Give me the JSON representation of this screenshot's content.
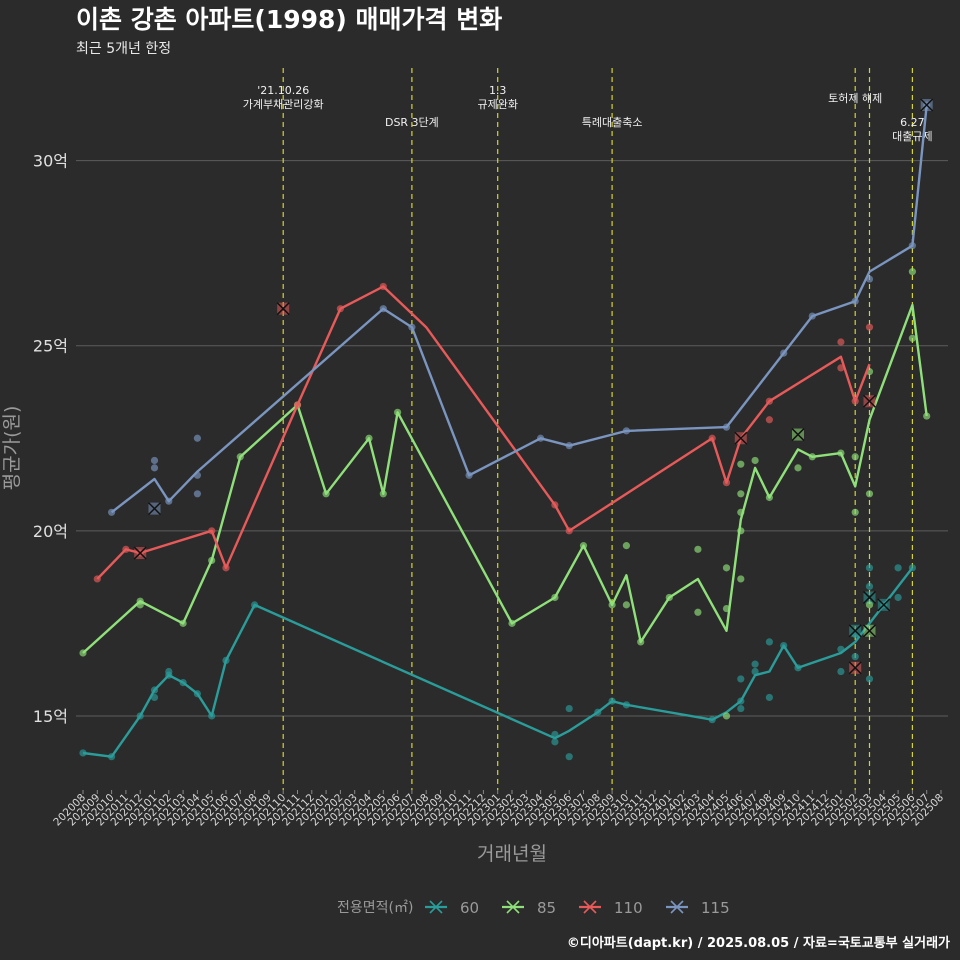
{
  "chart_data": {
    "type": "line",
    "title": "이촌 강촌 아파트(1998) 매매가격 변화",
    "subtitle": "최근 5개년 한정",
    "xlabel": "거래년월",
    "ylabel": "평균가(원)",
    "ylim": [
      13.0,
      32.5
    ],
    "yticks": [
      {
        "value": 15,
        "label": "15억"
      },
      {
        "value": 20,
        "label": "20억"
      },
      {
        "value": 25,
        "label": "25억"
      },
      {
        "value": 30,
        "label": "30억"
      }
    ],
    "x_categories": [
      "202008",
      "202009",
      "202010",
      "202011",
      "202012",
      "202101",
      "202102",
      "202103",
      "202104",
      "202105",
      "202106",
      "202107",
      "202108",
      "202109",
      "202110",
      "202111",
      "202112",
      "202201",
      "202202",
      "202203",
      "202204",
      "202205",
      "202206",
      "202207",
      "202208",
      "202209",
      "202210",
      "202211",
      "202212",
      "202301",
      "202302",
      "202303",
      "202304",
      "202305",
      "202306",
      "202307",
      "202308",
      "202309",
      "202310",
      "202311",
      "202312",
      "202401",
      "202402",
      "202403",
      "202404",
      "202405",
      "202406",
      "202407",
      "202408",
      "202409",
      "202410",
      "202411",
      "202412",
      "202501",
      "202502",
      "202503",
      "202504",
      "202505",
      "202506",
      "202507",
      "202508"
    ],
    "grid": "horizontal",
    "legend": {
      "title": "전용면적(㎡)",
      "position": "bottom",
      "entries": [
        {
          "label": "60",
          "color": "#2a9d9b"
        },
        {
          "label": "85",
          "color": "#8fe07a"
        },
        {
          "label": "110",
          "color": "#e85a5a"
        },
        {
          "label": "115",
          "color": "#7a95c0"
        }
      ]
    },
    "series": [
      {
        "name": "60",
        "color": "#2a9d9b",
        "line": [
          [
            "202008",
            14.0
          ],
          [
            "202010",
            13.9
          ],
          [
            "202012",
            15.0
          ],
          [
            "202101",
            15.7
          ],
          [
            "202102",
            16.1
          ],
          [
            "202103",
            15.9
          ],
          [
            "202104",
            15.6
          ],
          [
            "202105",
            15.0
          ],
          [
            "202106",
            16.5
          ],
          [
            "202108",
            18.0
          ],
          [
            "202305",
            14.4
          ],
          [
            "202306",
            14.6
          ],
          [
            "202308",
            15.1
          ],
          [
            "202309",
            15.4
          ],
          [
            "202310",
            15.3
          ],
          [
            "202404",
            14.9
          ],
          [
            "202405",
            15.1
          ],
          [
            "202406",
            15.4
          ],
          [
            "202407",
            16.1
          ],
          [
            "202408",
            16.2
          ],
          [
            "202409",
            16.9
          ],
          [
            "202410",
            16.3
          ],
          [
            "202501",
            16.7
          ],
          [
            "202502",
            17.0
          ],
          [
            "202503",
            17.5
          ],
          [
            "202504",
            18.0
          ],
          [
            "202505",
            18.5
          ],
          [
            "202506",
            19.0
          ]
        ],
        "points": [
          [
            "202008",
            14.0
          ],
          [
            "202010",
            13.9
          ],
          [
            "202012",
            15.0
          ],
          [
            "202101",
            15.5
          ],
          [
            "202101",
            15.7
          ],
          [
            "202102",
            16.2
          ],
          [
            "202102",
            16.1
          ],
          [
            "202103",
            15.9
          ],
          [
            "202104",
            15.6
          ],
          [
            "202105",
            15.0
          ],
          [
            "202106",
            16.5
          ],
          [
            "202108",
            18.0
          ],
          [
            "202305",
            14.5
          ],
          [
            "202305",
            14.3
          ],
          [
            "202306",
            15.2
          ],
          [
            "202306",
            13.9
          ],
          [
            "202308",
            15.1
          ],
          [
            "202309",
            15.4
          ],
          [
            "202310",
            15.3
          ],
          [
            "202404",
            14.9
          ],
          [
            "202406",
            15.2
          ],
          [
            "202406",
            15.4
          ],
          [
            "202406",
            16.0
          ],
          [
            "202407",
            16.2
          ],
          [
            "202407",
            16.4
          ],
          [
            "202408",
            17.0
          ],
          [
            "202408",
            15.5
          ],
          [
            "202409",
            16.9
          ],
          [
            "202410",
            16.3
          ],
          [
            "202501",
            16.2
          ],
          [
            "202501",
            16.8
          ],
          [
            "202502",
            16.6
          ],
          [
            "202502",
            17.2
          ],
          [
            "202503",
            16.0
          ],
          [
            "202503",
            18.5
          ],
          [
            "202503",
            19.0
          ],
          [
            "202504",
            18.0
          ],
          [
            "202505",
            18.2
          ],
          [
            "202505",
            19.0
          ],
          [
            "202506",
            19.0
          ]
        ],
        "crosses": [
          [
            "202502",
            17.3
          ],
          [
            "202503",
            18.2
          ],
          [
            "202504",
            18.0
          ]
        ]
      },
      {
        "name": "85",
        "color": "#8fe07a",
        "line": [
          [
            "202008",
            16.7
          ],
          [
            "202012",
            18.1
          ],
          [
            "202103",
            17.5
          ],
          [
            "202105",
            19.2
          ],
          [
            "202107",
            22.0
          ],
          [
            "202111",
            23.4
          ],
          [
            "202201",
            21.0
          ],
          [
            "202204",
            22.5
          ],
          [
            "202205",
            21.0
          ],
          [
            "202206",
            23.2
          ],
          [
            "202302",
            17.5
          ],
          [
            "202305",
            18.2
          ],
          [
            "202307",
            19.6
          ],
          [
            "202309",
            18.0
          ],
          [
            "202310",
            18.8
          ],
          [
            "202311",
            17.0
          ],
          [
            "202401",
            18.2
          ],
          [
            "202403",
            18.7
          ],
          [
            "202405",
            17.3
          ],
          [
            "202406",
            20.3
          ],
          [
            "202407",
            21.7
          ],
          [
            "202408",
            20.9
          ],
          [
            "202410",
            22.2
          ],
          [
            "202411",
            22.0
          ],
          [
            "202501",
            22.1
          ],
          [
            "202502",
            21.2
          ],
          [
            "202503",
            23.0
          ],
          [
            "202506",
            26.1
          ],
          [
            "202507",
            23.1
          ]
        ],
        "points": [
          [
            "202008",
            16.7
          ],
          [
            "202012",
            18.1
          ],
          [
            "202012",
            18.0
          ],
          [
            "202103",
            17.5
          ],
          [
            "202105",
            19.2
          ],
          [
            "202107",
            22.0
          ],
          [
            "202111",
            23.4
          ],
          [
            "202201",
            21.0
          ],
          [
            "202204",
            22.5
          ],
          [
            "202205",
            21.0
          ],
          [
            "202206",
            23.2
          ],
          [
            "202302",
            17.5
          ],
          [
            "202305",
            18.2
          ],
          [
            "202307",
            19.6
          ],
          [
            "202309",
            18.0
          ],
          [
            "202310",
            19.6
          ],
          [
            "202310",
            18.0
          ],
          [
            "202311",
            17.0
          ],
          [
            "202401",
            18.2
          ],
          [
            "202403",
            19.5
          ],
          [
            "202403",
            17.8
          ],
          [
            "202405",
            19.0
          ],
          [
            "202405",
            17.9
          ],
          [
            "202405",
            15.0
          ],
          [
            "202406",
            20.0
          ],
          [
            "202406",
            20.5
          ],
          [
            "202406",
            21.0
          ],
          [
            "202406",
            21.8
          ],
          [
            "202406",
            18.7
          ],
          [
            "202407",
            21.9
          ],
          [
            "202408",
            20.9
          ],
          [
            "202410",
            21.7
          ],
          [
            "202411",
            22.0
          ],
          [
            "202501",
            22.1
          ],
          [
            "202502",
            22.0
          ],
          [
            "202502",
            20.5
          ],
          [
            "202503",
            24.3
          ],
          [
            "202503",
            21.0
          ],
          [
            "202503",
            18.0
          ],
          [
            "202506",
            27.0
          ],
          [
            "202506",
            25.2
          ],
          [
            "202507",
            23.1
          ]
        ],
        "crosses": [
          [
            "202410",
            22.6
          ],
          [
            "202503",
            17.3
          ]
        ]
      },
      {
        "name": "110",
        "color": "#e85a5a",
        "line": [
          [
            "202009",
            18.7
          ],
          [
            "202011",
            19.5
          ],
          [
            "202012",
            19.4
          ],
          [
            "202105",
            20.0
          ],
          [
            "202106",
            19.0
          ],
          [
            "202111",
            23.4
          ],
          [
            "202202",
            26.0
          ],
          [
            "202205",
            26.6
          ],
          [
            "202208",
            25.5
          ],
          [
            "202305",
            20.7
          ],
          [
            "202306",
            20.0
          ],
          [
            "202404",
            22.5
          ],
          [
            "202405",
            21.3
          ],
          [
            "202406",
            22.5
          ],
          [
            "202408",
            23.5
          ],
          [
            "202501",
            24.7
          ],
          [
            "202502",
            23.5
          ],
          [
            "202503",
            24.5
          ]
        ],
        "points": [
          [
            "202009",
            18.7
          ],
          [
            "202011",
            19.5
          ],
          [
            "202012",
            19.4
          ],
          [
            "202105",
            20.0
          ],
          [
            "202106",
            19.0
          ],
          [
            "202111",
            23.4
          ],
          [
            "202202",
            26.0
          ],
          [
            "202205",
            26.6
          ],
          [
            "202305",
            20.7
          ],
          [
            "202306",
            20.0
          ],
          [
            "202404",
            22.5
          ],
          [
            "202405",
            21.3
          ],
          [
            "202408",
            23.5
          ],
          [
            "202408",
            23.0
          ],
          [
            "202501",
            24.4
          ],
          [
            "202501",
            25.1
          ],
          [
            "202502",
            23.5
          ],
          [
            "202503",
            25.5
          ]
        ],
        "crosses": [
          [
            "202110",
            26.0
          ],
          [
            "202012",
            19.4
          ],
          [
            "202406",
            22.5
          ],
          [
            "202502",
            16.3
          ],
          [
            "202503",
            23.5
          ]
        ]
      },
      {
        "name": "115",
        "color": "#7a95c0",
        "line": [
          [
            "202010",
            20.5
          ],
          [
            "202101",
            21.4
          ],
          [
            "202102",
            20.8
          ],
          [
            "202104",
            21.6
          ],
          [
            "202205",
            26.0
          ],
          [
            "202207",
            25.5
          ],
          [
            "202211",
            21.5
          ],
          [
            "202304",
            22.5
          ],
          [
            "202306",
            22.3
          ],
          [
            "202310",
            22.7
          ],
          [
            "202405",
            22.8
          ],
          [
            "202409",
            24.8
          ],
          [
            "202411",
            25.8
          ],
          [
            "202502",
            26.2
          ],
          [
            "202503",
            27.0
          ],
          [
            "202506",
            27.7
          ],
          [
            "202507",
            31.5
          ]
        ],
        "points": [
          [
            "202010",
            20.5
          ],
          [
            "202101",
            21.7
          ],
          [
            "202101",
            21.9
          ],
          [
            "202102",
            20.8
          ],
          [
            "202104",
            22.5
          ],
          [
            "202104",
            21.5
          ],
          [
            "202104",
            21.0
          ],
          [
            "202205",
            26.0
          ],
          [
            "202207",
            25.5
          ],
          [
            "202211",
            21.5
          ],
          [
            "202304",
            22.5
          ],
          [
            "202306",
            22.3
          ],
          [
            "202310",
            22.7
          ],
          [
            "202405",
            22.8
          ],
          [
            "202409",
            24.8
          ],
          [
            "202411",
            25.8
          ],
          [
            "202502",
            26.2
          ],
          [
            "202503",
            26.8
          ],
          [
            "202506",
            27.7
          ],
          [
            "202507",
            31.5
          ]
        ],
        "crosses": [
          [
            "202101",
            20.6
          ],
          [
            "202507",
            31.5
          ]
        ]
      }
    ],
    "annotations": [
      {
        "x": "202110",
        "lines": [
          "'21.10.26",
          "가계부채관리강화"
        ],
        "level": "high"
      },
      {
        "x": "202207",
        "lines": [
          "DSR 3단계"
        ],
        "level": "low"
      },
      {
        "x": "202301",
        "lines": [
          "1.3",
          "규제완화"
        ],
        "level": "high"
      },
      {
        "x": "202309",
        "lines": [
          "특례대출축소"
        ],
        "level": "low"
      },
      {
        "x": "202502",
        "lines": [
          "토허제 해제"
        ],
        "level": "mid"
      },
      {
        "x": "202503",
        "lines": [],
        "level": "mid"
      },
      {
        "x": "202506",
        "lines": [
          "6.27",
          "대출규제"
        ],
        "level": "low"
      }
    ],
    "source": "©디아파트(dapt.kr) / 2025.08.05 / 자료=국토교통부 실거래가"
  }
}
